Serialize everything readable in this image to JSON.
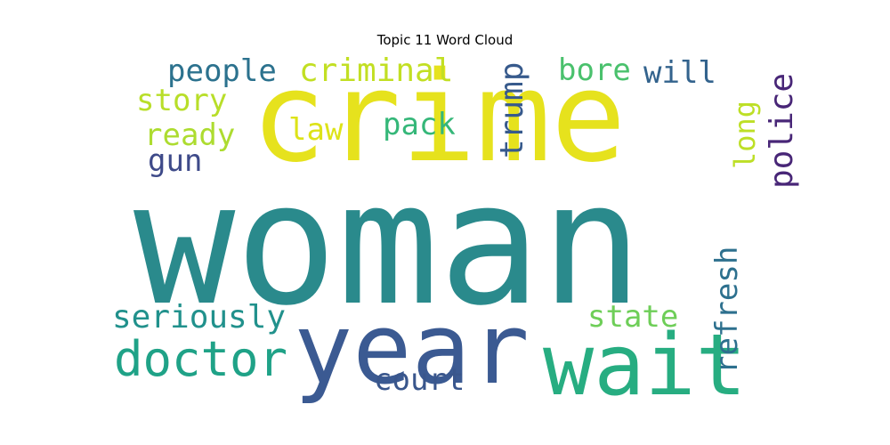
{
  "chart_data": {
    "type": "wordcloud",
    "title": "Topic 11 Word Cloud",
    "words": [
      {
        "text": "woman",
        "color": "#2a8a8c"
      },
      {
        "text": "crime",
        "color": "#e6e21d"
      },
      {
        "text": "year",
        "color": "#3b5a92"
      },
      {
        "text": "wait",
        "color": "#27ad81"
      },
      {
        "text": "doctor",
        "color": "#1fa287"
      },
      {
        "text": "criminal",
        "color": "#c2df23"
      },
      {
        "text": "people",
        "color": "#2c728e"
      },
      {
        "text": "story",
        "color": "#b8de29"
      },
      {
        "text": "ready",
        "color": "#addc30"
      },
      {
        "text": "gun",
        "color": "#3e4a89"
      },
      {
        "text": "law",
        "color": "#dde318"
      },
      {
        "text": "pack",
        "color": "#35b779"
      },
      {
        "text": "trump",
        "color": "#375a8c"
      },
      {
        "text": "bore",
        "color": "#4ac16d"
      },
      {
        "text": "will",
        "color": "#33638d"
      },
      {
        "text": "long",
        "color": "#bddf26"
      },
      {
        "text": "police",
        "color": "#482677"
      },
      {
        "text": "seriously",
        "color": "#21918c"
      },
      {
        "text": "refresh",
        "color": "#2d708e"
      },
      {
        "text": "state",
        "color": "#6ece58"
      },
      {
        "text": "court",
        "color": "#39568c"
      }
    ]
  }
}
